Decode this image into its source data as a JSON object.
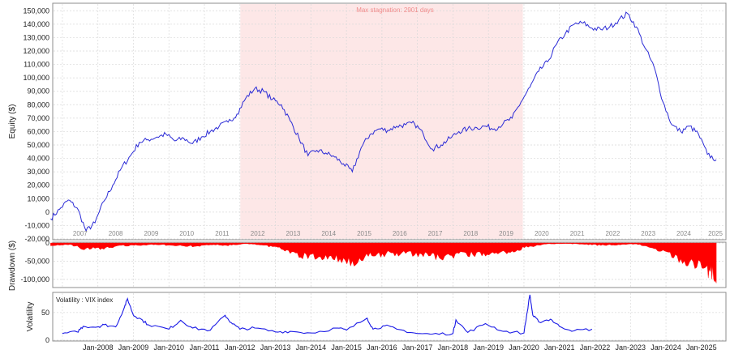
{
  "colors": {
    "equity_line": "#2b2bd6",
    "drawdown_fill": "#ff0000",
    "vix_line": "#1a1ae6",
    "stagnation_band": "#fde7e7",
    "stagnation_text": "#f08c8c",
    "grid": "#d9d9d9",
    "axis_text": "#222222",
    "year_label": "#8a8a8a"
  },
  "chart_data": [
    {
      "type": "line",
      "name": "equity",
      "ylabel": "Equity ($)",
      "ylim": [
        -20000,
        155000
      ],
      "y_ticks": [
        -20000,
        -10000,
        0,
        10000,
        20000,
        30000,
        40000,
        50000,
        60000,
        70000,
        80000,
        90000,
        100000,
        110000,
        120000,
        130000,
        140000,
        150000
      ],
      "y_tick_labels": [
        "-20,000",
        "-10,000",
        "0",
        "10,000",
        "20,000",
        "30,000",
        "40,000",
        "50,000",
        "60,000",
        "70,000",
        "80,000",
        "90,000",
        "100,000",
        "110,000",
        "120,000",
        "130,000",
        "140,000",
        "150,000"
      ],
      "year_labels": [
        "2007",
        "2008",
        "2009",
        "2010",
        "2011",
        "2012",
        "2013",
        "2014",
        "2015",
        "2016",
        "2017",
        "2018",
        "2019",
        "2020",
        "2021",
        "2022",
        "2023",
        "2024",
        "2025"
      ],
      "annotation": "Max stagnation: 2901 days",
      "stagnation_period": [
        "2012-01-05",
        "2019-12-20"
      ],
      "x": [
        "2006-09",
        "2006-12",
        "2007-03",
        "2007-06",
        "2007-09",
        "2007-12",
        "2008-03",
        "2008-06",
        "2008-09",
        "2008-12",
        "2009-03",
        "2009-06",
        "2009-09",
        "2009-12",
        "2010-03",
        "2010-06",
        "2010-09",
        "2010-12",
        "2011-03",
        "2011-06",
        "2011-09",
        "2011-12",
        "2012-03",
        "2012-06",
        "2012-09",
        "2012-12",
        "2013-03",
        "2013-06",
        "2013-09",
        "2013-12",
        "2014-03",
        "2014-06",
        "2014-09",
        "2014-12",
        "2015-03",
        "2015-06",
        "2015-09",
        "2015-12",
        "2016-03",
        "2016-06",
        "2016-09",
        "2016-12",
        "2017-03",
        "2017-06",
        "2017-09",
        "2017-12",
        "2018-03",
        "2018-06",
        "2018-09",
        "2018-12",
        "2019-03",
        "2019-06",
        "2019-09",
        "2019-12",
        "2020-03",
        "2020-06",
        "2020-09",
        "2020-12",
        "2021-03",
        "2021-06",
        "2021-09",
        "2021-12",
        "2022-03",
        "2022-06",
        "2022-09",
        "2022-12",
        "2023-03",
        "2023-06",
        "2023-09",
        "2023-12",
        "2024-03",
        "2024-06",
        "2024-09",
        "2024-12",
        "2025-03",
        "2025-06"
      ],
      "y": [
        -5000,
        2000,
        9000,
        3000,
        -14000,
        -8000,
        8000,
        20000,
        33000,
        42000,
        52000,
        54000,
        56000,
        58000,
        53000,
        55000,
        51000,
        56000,
        60000,
        64000,
        67000,
        73000,
        85000,
        92000,
        90000,
        84000,
        80000,
        68000,
        55000,
        42000,
        46000,
        44000,
        41000,
        36000,
        30000,
        48000,
        58000,
        62000,
        61000,
        64000,
        65000,
        66000,
        58000,
        47000,
        50000,
        55000,
        60000,
        62000,
        63000,
        64000,
        62000,
        66000,
        70000,
        82000,
        93000,
        105000,
        112000,
        125000,
        133000,
        140000,
        141000,
        137000,
        136000,
        138000,
        143000,
        148000,
        138000,
        122000,
        108000,
        82000,
        65000,
        60000,
        64000,
        58000,
        43000,
        39000
      ]
    },
    {
      "type": "area",
      "name": "drawdown",
      "ylabel": "Drawdown ($)",
      "ylim": [
        -120000,
        0
      ],
      "y_ticks": [
        0,
        -50000,
        -100000
      ],
      "y_tick_labels": [
        "0",
        "-50,000",
        "-100,000"
      ],
      "x": [
        "2006-09",
        "2007-03",
        "2007-09",
        "2008-03",
        "2008-09",
        "2009-03",
        "2009-09",
        "2010-03",
        "2010-09",
        "2011-03",
        "2011-09",
        "2012-03",
        "2012-09",
        "2013-03",
        "2013-09",
        "2014-03",
        "2014-09",
        "2015-03",
        "2015-09",
        "2016-03",
        "2016-09",
        "2017-03",
        "2017-09",
        "2018-03",
        "2018-09",
        "2019-03",
        "2019-09",
        "2020-03",
        "2020-09",
        "2021-03",
        "2021-09",
        "2022-03",
        "2022-09",
        "2023-03",
        "2023-09",
        "2024-03",
        "2024-09",
        "2025-03",
        "2025-06"
      ],
      "y": [
        -8000,
        -5000,
        -22000,
        -18000,
        -10000,
        -7000,
        -5000,
        -9000,
        -12000,
        -6000,
        -8000,
        -3000,
        -8000,
        -20000,
        -45000,
        -50000,
        -58000,
        -66000,
        -45000,
        -38000,
        -36000,
        -40000,
        -52000,
        -43000,
        -38000,
        -36000,
        -28000,
        -12000,
        -3000,
        -2000,
        -4000,
        -8000,
        -6000,
        -3000,
        -20000,
        -45000,
        -70000,
        -95000,
        -110000
      ]
    },
    {
      "type": "line",
      "name": "vix",
      "ylabel": "Volatility",
      "legend": "Volatility : VIX index",
      "ylim": [
        0,
        85
      ],
      "y_ticks": [
        0,
        50
      ],
      "y_tick_labels": [
        "0",
        "50"
      ],
      "x_tick_labels": [
        "Jan-2008",
        "Jan-2009",
        "Jan-2010",
        "Jan-2011",
        "Jan-2012",
        "Jan-2013",
        "Jan-2014",
        "Jan-2015",
        "Jan-2016",
        "Jan-2017",
        "Jan-2018",
        "Jan-2019",
        "Jan-2020",
        "Jan-2021",
        "Jan-2022",
        "Jan-2023",
        "Jan-2024",
        "Jan-2025"
      ],
      "x": [
        "2007-01",
        "2007-06",
        "2007-08",
        "2008-01",
        "2008-03",
        "2008-07",
        "2008-10",
        "2008-11",
        "2009-01",
        "2009-03",
        "2009-06",
        "2010-01",
        "2010-05",
        "2010-09",
        "2011-03",
        "2011-08",
        "2011-10",
        "2012-01",
        "2012-06",
        "2013-01",
        "2013-06",
        "2014-01",
        "2014-10",
        "2015-01",
        "2015-08",
        "2015-10",
        "2016-02",
        "2016-06",
        "2017-01",
        "2017-06",
        "2018-01",
        "2018-02",
        "2018-06",
        "2018-12",
        "2019-06",
        "2020-01",
        "2020-03",
        "2020-04",
        "2020-06",
        "2020-10",
        "2021-01",
        "2021-06",
        "2021-12"
      ],
      "y": [
        12,
        15,
        25,
        24,
        28,
        24,
        60,
        75,
        45,
        40,
        28,
        20,
        36,
        22,
        18,
        45,
        32,
        20,
        22,
        15,
        16,
        13,
        22,
        18,
        40,
        20,
        26,
        20,
        12,
        11,
        12,
        37,
        14,
        30,
        16,
        13,
        82,
        45,
        33,
        38,
        25,
        17,
        20
      ]
    }
  ]
}
